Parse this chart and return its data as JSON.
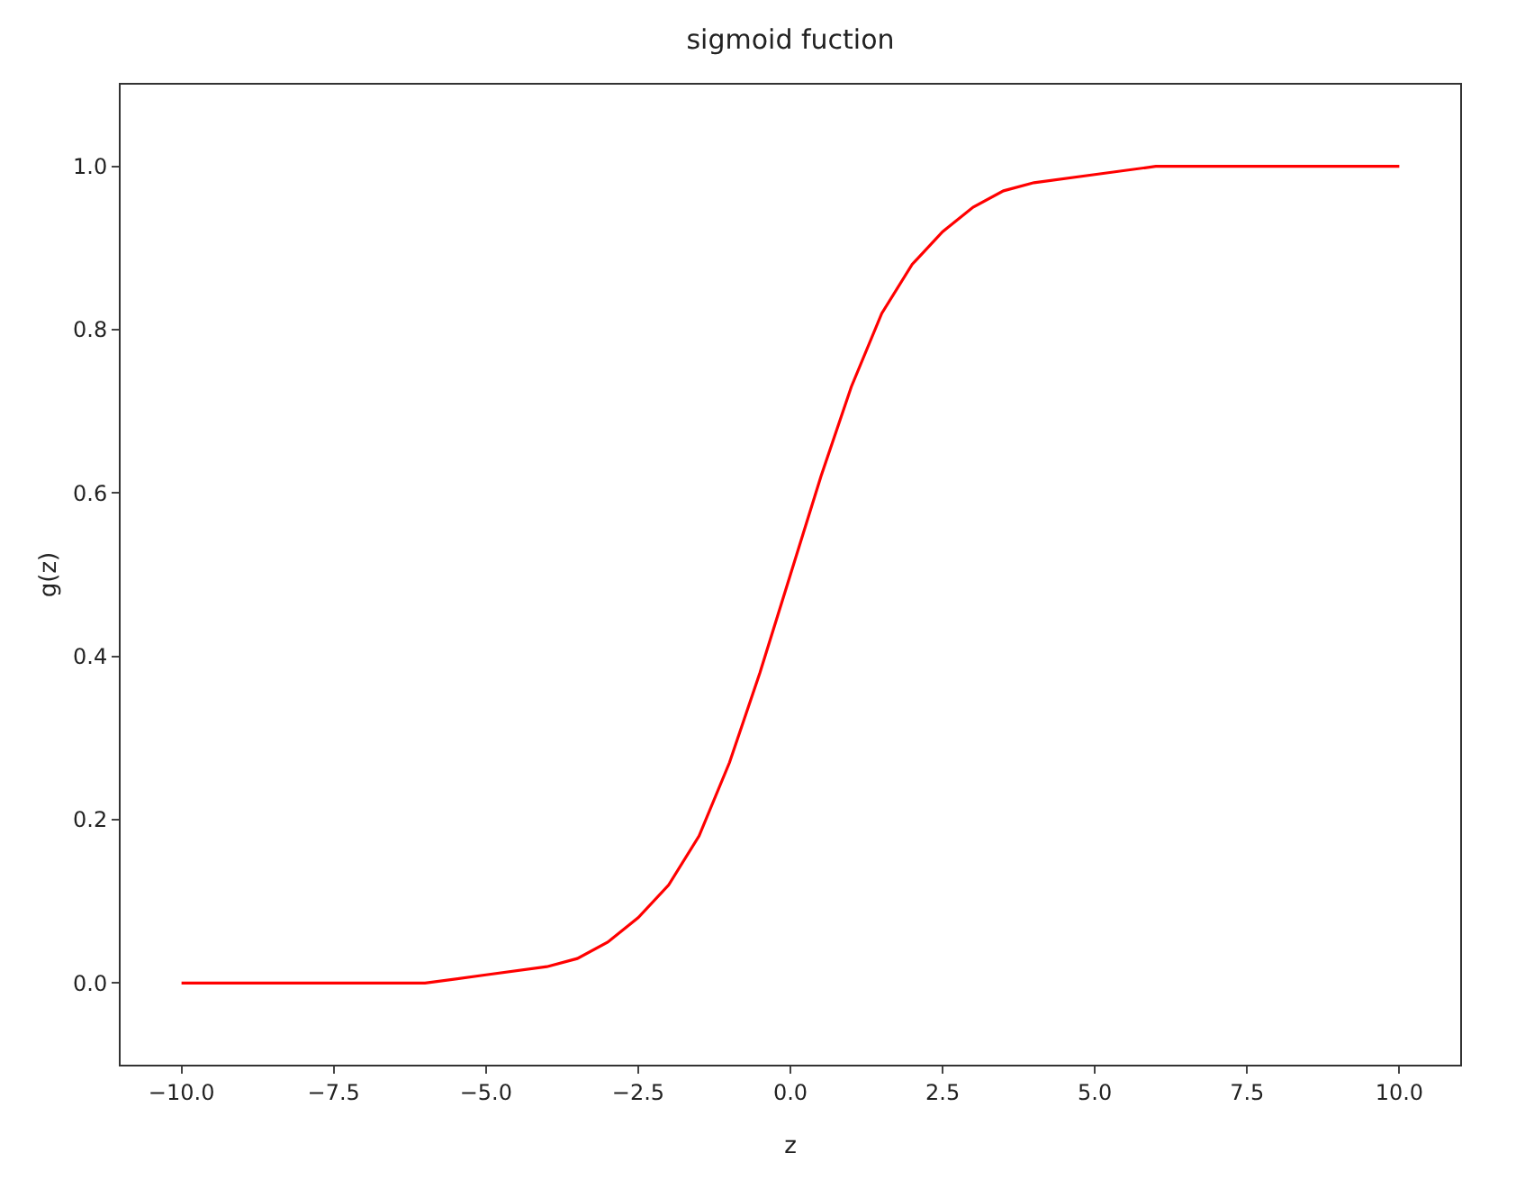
{
  "chart_data": {
    "type": "line",
    "title": "sigmoid fuction",
    "xlabel": "z",
    "ylabel": "g(z)",
    "x": [
      -10,
      -8,
      -6,
      -5,
      -4,
      -3.5,
      -3,
      -2.5,
      -2,
      -1.5,
      -1,
      -0.5,
      0,
      0.5,
      1,
      1.5,
      2,
      2.5,
      3,
      3.5,
      4,
      5,
      6,
      8,
      10
    ],
    "series": [
      {
        "color": "#ff0000",
        "values": [
          0,
          0,
          0,
          0.01,
          0.02,
          0.03,
          0.05,
          0.08,
          0.12,
          0.18,
          0.27,
          0.38,
          0.5,
          0.62,
          0.73,
          0.82,
          0.88,
          0.92,
          0.95,
          0.97,
          0.98,
          0.99,
          1.0,
          1.0,
          1.0
        ]
      }
    ],
    "xlim": [
      -11,
      11
    ],
    "ylim": [
      -0.1,
      1.1
    ],
    "xticks": [
      {
        "value": -10,
        "label": "−10.0"
      },
      {
        "value": -7.5,
        "label": "−7.5"
      },
      {
        "value": -5,
        "label": "−5.0"
      },
      {
        "value": -2.5,
        "label": "−2.5"
      },
      {
        "value": 0,
        "label": "0.0"
      },
      {
        "value": 2.5,
        "label": "2.5"
      },
      {
        "value": 5,
        "label": "5.0"
      },
      {
        "value": 7.5,
        "label": "7.5"
      },
      {
        "value": 10,
        "label": "10.0"
      }
    ],
    "yticks": [
      {
        "value": 0,
        "label": "0.0"
      },
      {
        "value": 0.2,
        "label": "0.2"
      },
      {
        "value": 0.4,
        "label": "0.4"
      },
      {
        "value": 0.6,
        "label": "0.6"
      },
      {
        "value": 0.8,
        "label": "0.8"
      },
      {
        "value": 1,
        "label": "1.0"
      }
    ],
    "grid": false,
    "marker": "none",
    "line_style": "solid"
  }
}
